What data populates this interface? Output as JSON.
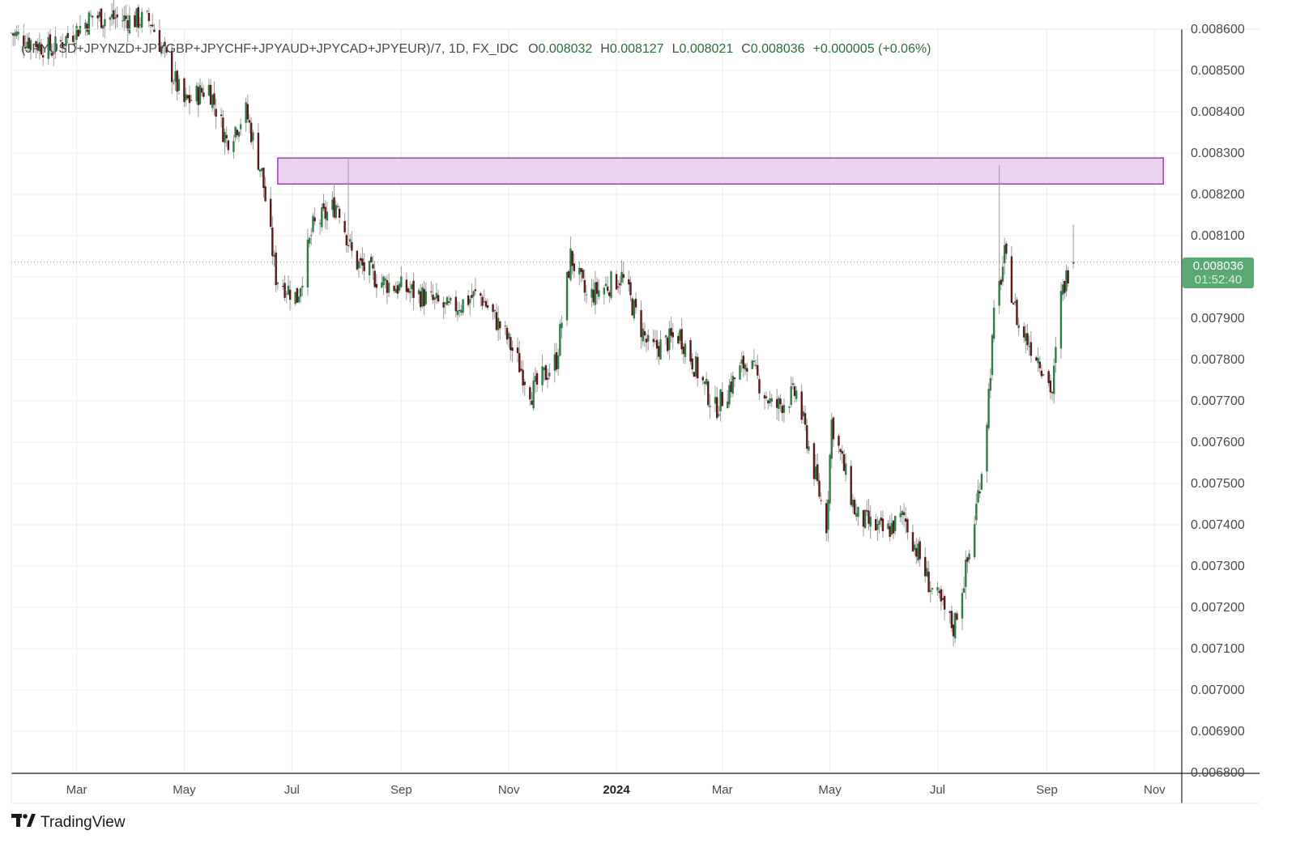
{
  "header": {
    "symbol": "(JPYUSD+JPYNZD+JPYGBP+JPYCHF+JPYAUD+JPYCAD+JPYEUR)/7, 1D, FX_IDC",
    "open_label": "O",
    "open_value": "0.008032",
    "high_label": "H",
    "high_value": "0.008127",
    "low_label": "L",
    "low_value": "0.008021",
    "close_label": "C",
    "close_value": "0.008036",
    "change": "+0.000005 (+0.06%)"
  },
  "price_tag": {
    "price": "0.008036",
    "countdown": "01:52:40"
  },
  "brand": {
    "name": "TradingView"
  },
  "colors": {
    "up": "#2e7d46",
    "down": "#5a1a1a",
    "wick": "#9a9a9a",
    "zone_fill": "#ead3ef",
    "zone_stroke": "#a53bbf",
    "last_line": "#5aa872",
    "tag": "#5aa872"
  },
  "chart_data": {
    "type": "candlestick",
    "timeframe": "1D",
    "x_tick_labels": [
      "Mar",
      "May",
      "Jul",
      "Sep",
      "Nov",
      "2024",
      "Mar",
      "May",
      "Jul",
      "Sep",
      "Nov"
    ],
    "x_tick_dates": [
      "2023-03-01",
      "2023-05-01",
      "2023-07-01",
      "2023-09-01",
      "2023-11-01",
      "2024-01-01",
      "2024-03-01",
      "2024-05-01",
      "2024-07-01",
      "2024-09-01",
      "2024-11-01"
    ],
    "y_tick_labels": [
      "0.008600",
      "0.008500",
      "0.008400",
      "0.008300",
      "0.008200",
      "0.008100",
      "0.007900",
      "0.007800",
      "0.007700",
      "0.007600",
      "0.007500",
      "0.007400",
      "0.007300",
      "0.007200",
      "0.007100",
      "0.007000",
      "0.006900",
      "0.006800"
    ],
    "ylim": [
      0.0068,
      0.0086
    ],
    "xlim": [
      "2023-01-23",
      "2024-11-16"
    ],
    "last_price": 0.008036,
    "resistance_zone": {
      "low": 0.008225,
      "high": 0.008288,
      "start": "2023-06-23",
      "end": "2024-11-06"
    },
    "key_points": [
      {
        "date": "2023-01-23",
        "close": 0.00859
      },
      {
        "date": "2023-02-15",
        "close": 0.00855
      },
      {
        "date": "2023-03-10",
        "close": 0.00863
      },
      {
        "date": "2023-04-12",
        "close": 0.00862
      },
      {
        "date": "2023-05-01",
        "close": 0.00842
      },
      {
        "date": "2023-05-15",
        "close": 0.00846
      },
      {
        "date": "2023-05-25",
        "close": 0.00833
      },
      {
        "date": "2023-06-05",
        "close": 0.0084
      },
      {
        "date": "2023-06-14",
        "close": 0.00825
      },
      {
        "date": "2023-06-22",
        "close": 0.008
      },
      {
        "date": "2023-07-04",
        "close": 0.00795
      },
      {
        "date": "2023-07-13",
        "close": 0.00812
      },
      {
        "date": "2023-07-27",
        "close": 0.00818
      },
      {
        "date": "2023-08-05",
        "close": 0.00804
      },
      {
        "date": "2023-08-20",
        "close": 0.00799
      },
      {
        "date": "2023-09-10",
        "close": 0.00796
      },
      {
        "date": "2023-09-28",
        "close": 0.00792
      },
      {
        "date": "2023-10-15",
        "close": 0.00796
      },
      {
        "date": "2023-10-30",
        "close": 0.00786
      },
      {
        "date": "2023-11-14",
        "close": 0.00772
      },
      {
        "date": "2023-11-28",
        "close": 0.0078
      },
      {
        "date": "2023-12-06",
        "close": 0.00805
      },
      {
        "date": "2023-12-15",
        "close": 0.00795
      },
      {
        "date": "2024-01-04",
        "close": 0.008
      },
      {
        "date": "2024-01-20",
        "close": 0.00782
      },
      {
        "date": "2024-02-06",
        "close": 0.00786
      },
      {
        "date": "2024-02-26",
        "close": 0.00768
      },
      {
        "date": "2024-03-15",
        "close": 0.0078
      },
      {
        "date": "2024-03-30",
        "close": 0.00768
      },
      {
        "date": "2024-04-12",
        "close": 0.00772
      },
      {
        "date": "2024-04-29",
        "close": 0.0074
      },
      {
        "date": "2024-05-02",
        "close": 0.00765
      },
      {
        "date": "2024-05-16",
        "close": 0.00742
      },
      {
        "date": "2024-06-01",
        "close": 0.00738
      },
      {
        "date": "2024-06-12",
        "close": 0.00742
      },
      {
        "date": "2024-06-27",
        "close": 0.00725
      },
      {
        "date": "2024-07-10",
        "close": 0.00715
      },
      {
        "date": "2024-07-20",
        "close": 0.00735
      },
      {
        "date": "2024-07-28",
        "close": 0.0076
      },
      {
        "date": "2024-08-02",
        "close": 0.0079
      },
      {
        "date": "2024-08-08",
        "close": 0.00805
      },
      {
        "date": "2024-08-16",
        "close": 0.00788
      },
      {
        "date": "2024-08-28",
        "close": 0.0078
      },
      {
        "date": "2024-09-04",
        "close": 0.00772
      },
      {
        "date": "2024-09-09",
        "close": 0.00795
      },
      {
        "date": "2024-09-14",
        "close": 0.00803
      },
      {
        "date": "2024-09-16",
        "close": 0.008036
      }
    ],
    "wick_extremes": [
      {
        "date": "2023-08-02",
        "high": 0.00829
      },
      {
        "date": "2024-08-05",
        "high": 0.00827
      },
      {
        "date": "2024-09-16",
        "high": 0.008127
      },
      {
        "date": "2024-07-09",
        "low": 0.00714
      },
      {
        "date": "2024-04-29",
        "low": 0.00736
      }
    ]
  }
}
